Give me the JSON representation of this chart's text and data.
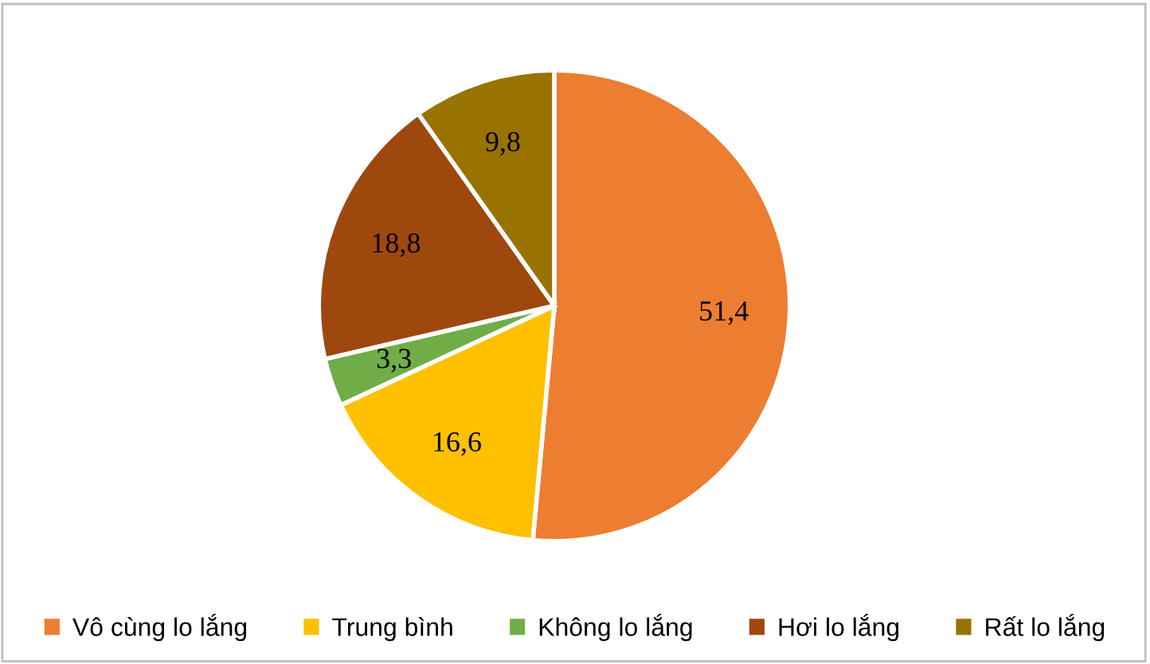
{
  "chart_data": {
    "type": "pie",
    "categories": [
      "Vô cùng lo lắng",
      "Trung bình",
      "Không lo lắng",
      "Hơi lo lắng",
      "Rất lo lắng"
    ],
    "values": [
      51.4,
      16.6,
      3.3,
      18.8,
      9.8
    ],
    "colors": [
      "#ed7d31",
      "#ffc000",
      "#70ad47",
      "#9e480e",
      "#997300"
    ],
    "value_labels": [
      "51,4",
      "16,6",
      "3,3",
      "18,8",
      "9,8"
    ],
    "legend": "bottom"
  }
}
